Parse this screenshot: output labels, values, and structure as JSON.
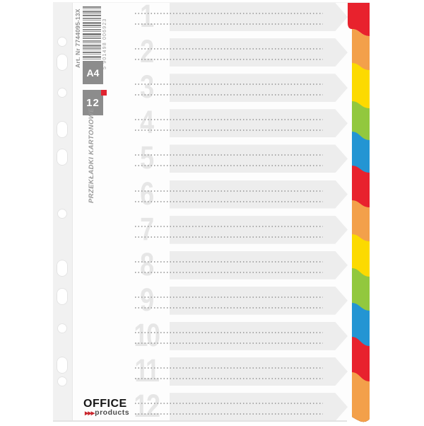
{
  "left_panel": {
    "art_number": "Art. Nr 7744095-13X",
    "barcode_digits": "5 901498 006923",
    "format_badge": "A4",
    "count_badge": "12",
    "product_label": "PRZEKŁADKI KARTONOWE",
    "brand": {
      "name": "OFFICE",
      "arrows": "▶▶▶",
      "sub": "products"
    }
  },
  "divider": {
    "rows": [
      {
        "number": "1"
      },
      {
        "number": "2"
      },
      {
        "number": "3"
      },
      {
        "number": "4"
      },
      {
        "number": "5"
      },
      {
        "number": "6"
      },
      {
        "number": "7"
      },
      {
        "number": "8"
      },
      {
        "number": "9"
      },
      {
        "number": "10"
      },
      {
        "number": "11"
      },
      {
        "number": "12"
      }
    ],
    "tabs": [
      {
        "index": 1,
        "color": "#e8222d"
      },
      {
        "index": 2,
        "color": "#f3a04a"
      },
      {
        "index": 3,
        "color": "#fcda00"
      },
      {
        "index": 4,
        "color": "#92c83e"
      },
      {
        "index": 5,
        "color": "#2395d3"
      },
      {
        "index": 6,
        "color": "#e8222d"
      },
      {
        "index": 7,
        "color": "#f3a04a"
      },
      {
        "index": 8,
        "color": "#fcda00"
      },
      {
        "index": 9,
        "color": "#92c83e"
      },
      {
        "index": 10,
        "color": "#2395d3"
      },
      {
        "index": 11,
        "color": "#e8222d"
      },
      {
        "index": 12,
        "color": "#f3a04a"
      }
    ]
  },
  "colors": {
    "band": "#ededed",
    "number": "#e6e6e6",
    "badge_gray": "#8c8c8c",
    "accent_red": "#e02330"
  }
}
